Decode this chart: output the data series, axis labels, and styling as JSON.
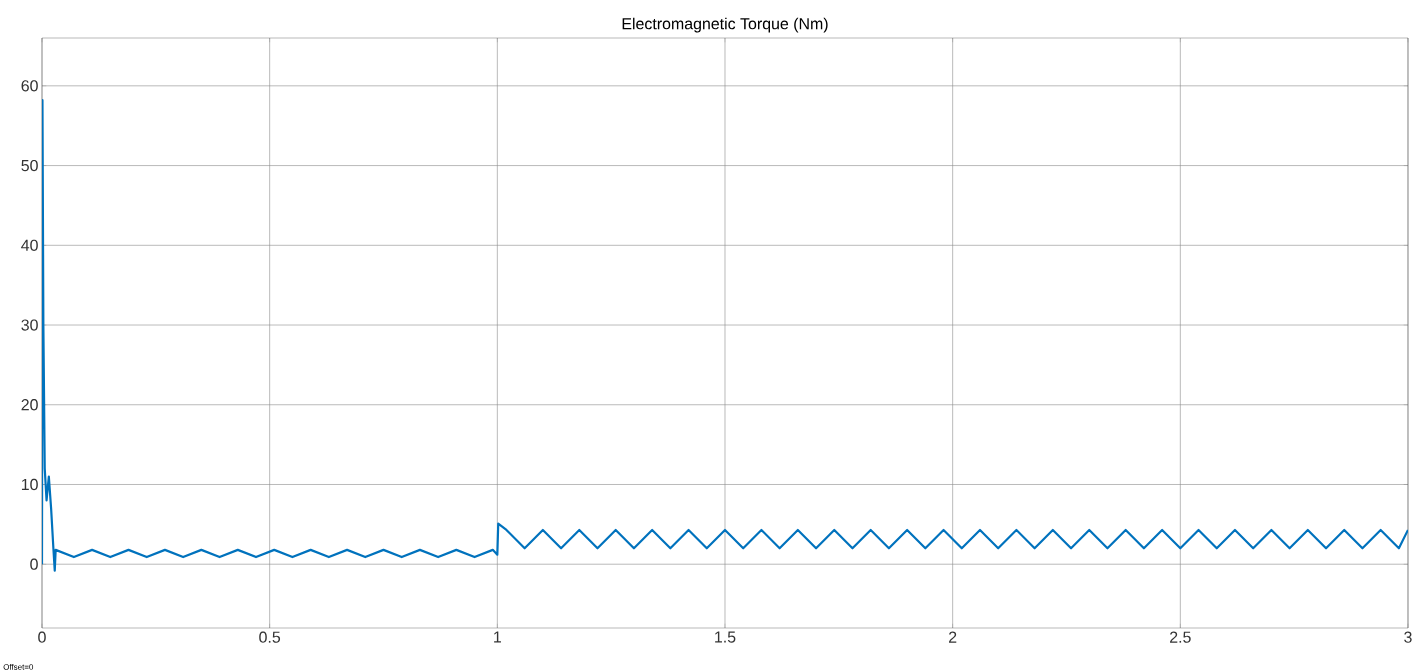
{
  "chart_data": {
    "type": "line",
    "title": "Electromagnetic Torque (Nm)",
    "annotations": [
      "Offset=0"
    ],
    "x": [
      0,
      0.001,
      0.003,
      0.006,
      0.01,
      0.015,
      0.02,
      0.025,
      0.028,
      0.03,
      0.07,
      0.11,
      0.15,
      0.19,
      0.23,
      0.27,
      0.31,
      0.35,
      0.39,
      0.43,
      0.47,
      0.51,
      0.55,
      0.59,
      0.63,
      0.67,
      0.71,
      0.75,
      0.79,
      0.83,
      0.87,
      0.91,
      0.95,
      0.99,
      1.0,
      1.002,
      1.02,
      1.06,
      1.1,
      1.14,
      1.18,
      1.22,
      1.26,
      1.3,
      1.34,
      1.38,
      1.42,
      1.46,
      1.5,
      1.54,
      1.58,
      1.62,
      1.66,
      1.7,
      1.74,
      1.78,
      1.82,
      1.86,
      1.9,
      1.94,
      1.98,
      2.02,
      2.06,
      2.1,
      2.14,
      2.18,
      2.22,
      2.26,
      2.3,
      2.34,
      2.38,
      2.42,
      2.46,
      2.5,
      2.54,
      2.58,
      2.62,
      2.66,
      2.7,
      2.74,
      2.78,
      2.82,
      2.86,
      2.9,
      2.94,
      2.98,
      3.0
    ],
    "series": [
      {
        "color": "#0072bd",
        "values": [
          0,
          58.2,
          30,
          12,
          8,
          11,
          7,
          2,
          -0.8,
          1.8,
          0.9,
          1.8,
          0.9,
          1.8,
          0.9,
          1.8,
          0.9,
          1.8,
          0.9,
          1.8,
          0.9,
          1.8,
          0.9,
          1.8,
          0.9,
          1.8,
          0.9,
          1.8,
          0.9,
          1.8,
          0.9,
          1.8,
          0.9,
          1.8,
          1.2,
          5.1,
          4.3,
          2.0,
          4.3,
          2.0,
          4.3,
          2.0,
          4.3,
          2.0,
          4.3,
          2.0,
          4.3,
          2.0,
          4.3,
          2.0,
          4.3,
          2.0,
          4.3,
          2.0,
          4.3,
          2.0,
          4.3,
          2.0,
          4.3,
          2.0,
          4.3,
          2.0,
          4.3,
          2.0,
          4.3,
          2.0,
          4.3,
          2.0,
          4.3,
          2.0,
          4.3,
          2.0,
          4.3,
          2.0,
          4.3,
          2.0,
          4.3,
          2.0,
          4.3,
          2.0,
          4.3,
          2.0,
          4.3,
          2.0,
          4.3,
          2.0,
          4.3
        ]
      }
    ],
    "xlim": [
      0,
      3
    ],
    "ylim": [
      -8,
      66
    ],
    "xticks": [
      0,
      0.5,
      1,
      1.5,
      2,
      2.5,
      3
    ],
    "yticks": [
      0,
      10,
      20,
      30,
      40,
      50,
      60
    ],
    "grid": true,
    "legend": false,
    "marker": "none",
    "line_style": "solid"
  }
}
